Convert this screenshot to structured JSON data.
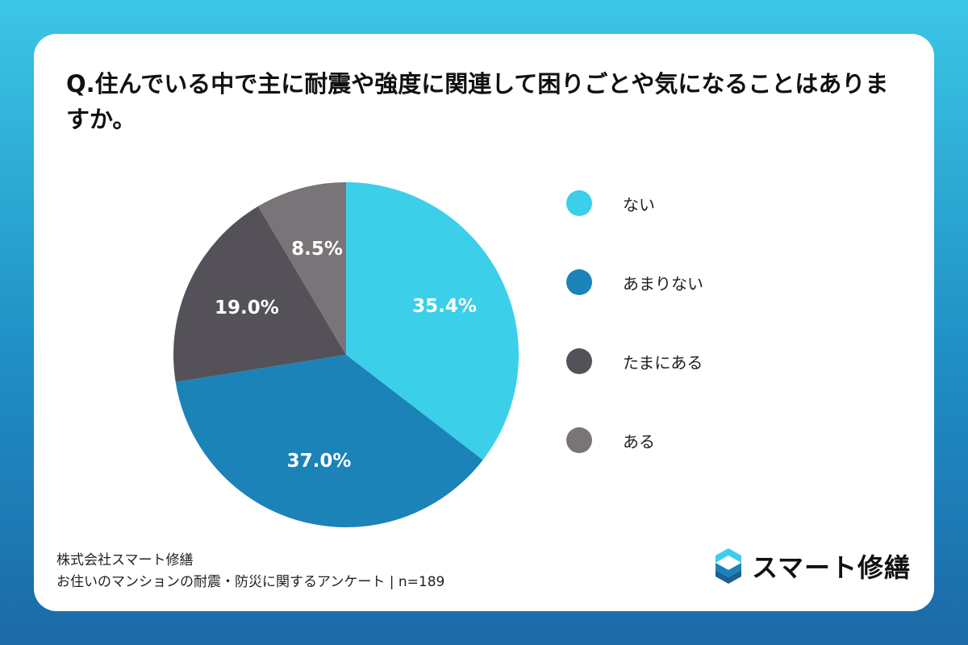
{
  "colors": {
    "nai": "#3ccfea",
    "amari_nai": "#1b83b8",
    "tamani_aru": "#555158",
    "aru": "#797478",
    "label_text": "#ffffff"
  },
  "chart_data": {
    "type": "pie",
    "title": "Q.住んでいる中で主に耐震や強度に関連して困りごとや気になることはありますか。",
    "legend_position": "right",
    "slices": [
      {
        "label": "ない",
        "value": 35.4,
        "display": "35.4%",
        "color": "#3ccfea"
      },
      {
        "label": "あまりない",
        "value": 37.0,
        "display": "37.0%",
        "color": "#1b83b8"
      },
      {
        "label": "たまにある",
        "value": 19.0,
        "display": "19.0%",
        "color": "#555158"
      },
      {
        "label": "ある",
        "value": 8.5,
        "display": "8.5%",
        "color": "#797478"
      }
    ]
  },
  "footer": {
    "company": "株式会社スマート修繕",
    "survey": "お住いのマンションの耐震・防災に関するアンケート | n=189"
  },
  "logo": {
    "text": "スマート修繕",
    "icon": "s-logo-icon"
  }
}
